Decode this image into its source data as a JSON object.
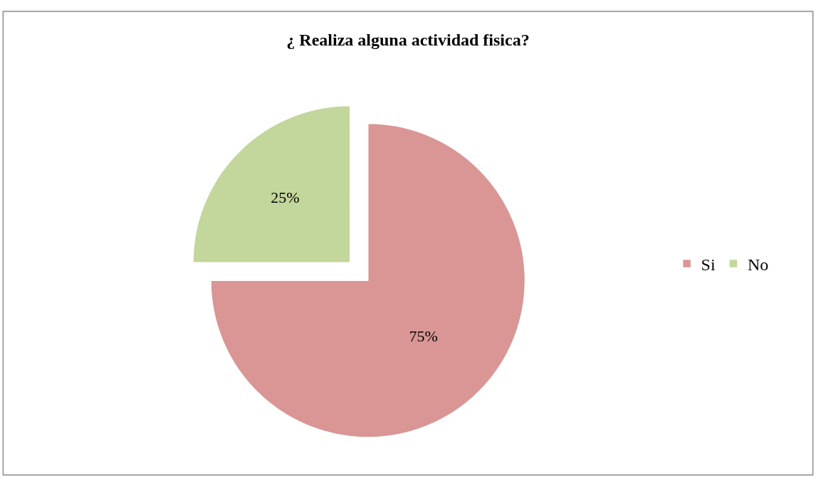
{
  "chart_data": {
    "type": "pie",
    "title": "¿ Realiza alguna actividad fisica?",
    "categories": [
      "Si",
      "No"
    ],
    "values": [
      75,
      25
    ],
    "colors": [
      "#d99694",
      "#c3d69b"
    ],
    "value_labels": [
      "75%",
      "25%"
    ],
    "legend": "right"
  }
}
